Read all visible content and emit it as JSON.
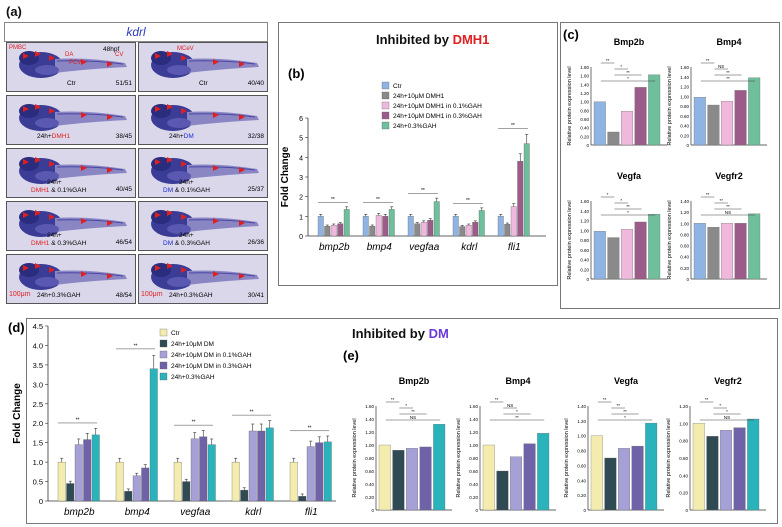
{
  "panel_a": {
    "letter": "(a)",
    "gene": "kdrl",
    "stage": "48hpf",
    "annotations": [
      "PMBC",
      "DA",
      "PCV",
      "CV",
      "MCeV"
    ],
    "scale_bar": "100μm",
    "fish_panels": [
      {
        "label_parts": [
          [
            "Ctr",
            ""
          ]
        ],
        "count": "51/51"
      },
      {
        "label_parts": [
          [
            "Ctr",
            ""
          ]
        ],
        "count": "40/40"
      },
      {
        "label_parts": [
          [
            "24h+",
            ""
          ],
          [
            "DMH1",
            "red"
          ]
        ],
        "count": "38/45"
      },
      {
        "label_parts": [
          [
            "24h+",
            ""
          ],
          [
            "DM",
            "blue"
          ]
        ],
        "count": "32/38"
      },
      {
        "label_parts": [
          [
            "24h+",
            ""
          ]
        ],
        "label2": [
          [
            "DMH1",
            "red"
          ],
          [
            " & 0.1%GAH",
            ""
          ]
        ],
        "count": "40/45"
      },
      {
        "label_parts": [
          [
            "24h+",
            ""
          ]
        ],
        "label2": [
          [
            "DM",
            "blue"
          ],
          [
            " & 0.1%GAH",
            ""
          ]
        ],
        "count": "25/37"
      },
      {
        "label_parts": [
          [
            "24h+",
            ""
          ]
        ],
        "label2": [
          [
            "DMH1",
            "red"
          ],
          [
            " & 0.3%GAH",
            ""
          ]
        ],
        "count": "46/54"
      },
      {
        "label_parts": [
          [
            "24h+",
            ""
          ]
        ],
        "label2": [
          [
            "DM",
            "blue"
          ],
          [
            " & 0.3%GAH",
            ""
          ]
        ],
        "count": "26/36"
      },
      {
        "label_parts": [
          [
            "24h+0.3%GAH",
            ""
          ]
        ],
        "count": "48/54"
      },
      {
        "label_parts": [
          [
            "24h+0.3%GAH",
            ""
          ]
        ],
        "count": "30/41"
      }
    ]
  },
  "dmh1_header": {
    "prefix": "Inhibited by ",
    "drug": "DMH1"
  },
  "dm_header": {
    "prefix": "Inhibited by ",
    "drug": "DM"
  },
  "colors": {
    "ctr_dmh1": "#8fb4e3",
    "dmh1": "#8a8a8a",
    "dmh1_01": "#f0b8dc",
    "dmh1_03": "#9c5c8a",
    "gah_b": "#6fbf9c",
    "ctr_dm": "#f3ecae",
    "dm": "#2f4a52",
    "dm_01": "#a5a0d6",
    "dm_03": "#6f62a8",
    "gah_d": "#2bb3bc"
  },
  "chart_data": [
    {
      "id": "b",
      "letter": "(b)",
      "type": "bar",
      "ylabel": "Fold Change",
      "ylim": [
        0,
        6
      ],
      "yticks": [
        0,
        1,
        2,
        3,
        4,
        5,
        6
      ],
      "categories": [
        "bmp2b",
        "bmp4",
        "vegfaa",
        "kdrl",
        "fli1"
      ],
      "series": [
        {
          "name": "Ctr",
          "values": [
            1.0,
            1.0,
            1.0,
            1.0,
            1.0
          ]
        },
        {
          "name": "24h+10μM DMH1",
          "values": [
            0.5,
            0.5,
            0.62,
            0.48,
            0.6
          ]
        },
        {
          "name": "24h+10μM DMH1 in 0.1%GAH",
          "values": [
            0.55,
            1.05,
            0.7,
            0.55,
            1.5
          ]
        },
        {
          "name": "24h+10μM DMH1 in 0.3%GAH",
          "values": [
            0.62,
            1.0,
            0.8,
            0.7,
            3.8
          ]
        },
        {
          "name": "24h+0.3%GAH",
          "values": [
            1.35,
            1.35,
            1.75,
            1.3,
            4.7
          ]
        }
      ]
    },
    {
      "id": "c",
      "letter": "(c)",
      "type": "bar",
      "ylabel": "Relative protein expression level",
      "panels": [
        {
          "title": "Bmp2b",
          "ylim": [
            0,
            1.8
          ],
          "yticks": [
            "0",
            "0.20",
            "0.40",
            "0.60",
            "0.80",
            "1.00",
            "1.20",
            "1.40",
            "1.60",
            "1.80"
          ],
          "values": [
            1.0,
            0.3,
            0.78,
            1.33,
            1.62
          ]
        },
        {
          "title": "Bmp4",
          "ylim": [
            0,
            1.6
          ],
          "yticks": [
            "0",
            "0.20",
            "0.40",
            "0.60",
            "0.80",
            "1.00",
            "1.20",
            "1.40",
            "1.60"
          ],
          "values": [
            0.98,
            0.82,
            0.9,
            1.12,
            1.38
          ]
        },
        {
          "title": "Vegfa",
          "ylim": [
            0,
            1.6
          ],
          "yticks": [
            "0",
            "0.20",
            "0.40",
            "0.60",
            "0.80",
            "1.00",
            "1.20",
            "1.40",
            "1.60"
          ],
          "values": [
            0.98,
            0.85,
            1.02,
            1.17,
            1.33
          ]
        },
        {
          "title": "Vegfr2",
          "ylim": [
            0,
            1.4
          ],
          "yticks": [
            "0",
            "0.20",
            "0.40",
            "0.60",
            "0.80",
            "1.00",
            "1.20",
            "1.40"
          ],
          "values": [
            1.0,
            0.93,
            1.0,
            1.0,
            1.17
          ]
        }
      ]
    },
    {
      "id": "d",
      "letter": "(d)",
      "type": "bar",
      "ylabel": "Fold Change",
      "ylim": [
        0,
        4.5
      ],
      "yticks": [
        "0",
        "0.5",
        "1.0",
        "1.5",
        "2.0",
        "2.5",
        "3.0",
        "3.5",
        "4.0",
        "4.5"
      ],
      "categories": [
        "bmp2b",
        "bmp4",
        "vegfaa",
        "kdrl",
        "fli1"
      ],
      "series": [
        {
          "name": "Ctr",
          "values": [
            1.0,
            1.0,
            1.0,
            1.0,
            1.0
          ]
        },
        {
          "name": "24h+10μM DM",
          "values": [
            0.45,
            0.25,
            0.5,
            0.28,
            0.12
          ]
        },
        {
          "name": "24h+10μM DM in 0.1%GAH",
          "values": [
            1.45,
            0.65,
            1.6,
            1.8,
            1.4
          ]
        },
        {
          "name": "24h+10μM DM in 0.3%GAH",
          "values": [
            1.58,
            0.85,
            1.65,
            1.8,
            1.5
          ]
        },
        {
          "name": "24h+0.3%GAH",
          "values": [
            1.7,
            3.4,
            1.45,
            1.88,
            1.52
          ]
        }
      ]
    },
    {
      "id": "e",
      "letter": "(e)",
      "type": "bar",
      "ylabel": "Relative protein expression level",
      "panels": [
        {
          "title": "Bmp2b",
          "ylim": [
            0,
            1.6
          ],
          "yticks": [
            "0",
            "0.20",
            "0.40",
            "0.60",
            "0.80",
            "1.00",
            "1.20",
            "1.40",
            "1.60"
          ],
          "values": [
            1.0,
            0.92,
            0.95,
            0.97,
            1.32
          ]
        },
        {
          "title": "Bmp4",
          "ylim": [
            0,
            1.6
          ],
          "yticks": [
            "0",
            "0.20",
            "0.40",
            "0.60",
            "0.80",
            "1.00",
            "1.20",
            "1.40",
            "1.60"
          ],
          "values": [
            1.0,
            0.6,
            0.82,
            1.02,
            1.18
          ]
        },
        {
          "title": "Vegfa",
          "ylim": [
            0,
            1.4
          ],
          "yticks": [
            "0",
            "0.20",
            "0.40",
            "0.60",
            "0.80",
            "1.00",
            "1.20",
            "1.40"
          ],
          "values": [
            1.0,
            0.7,
            0.83,
            0.86,
            1.17
          ]
        },
        {
          "title": "Vegfr2",
          "ylim": [
            0,
            1.2
          ],
          "yticks": [
            "0",
            "0.20",
            "0.40",
            "0.60",
            "0.80",
            "1.00",
            "1.20"
          ],
          "values": [
            1.0,
            0.85,
            0.92,
            0.95,
            1.05
          ]
        }
      ]
    }
  ]
}
